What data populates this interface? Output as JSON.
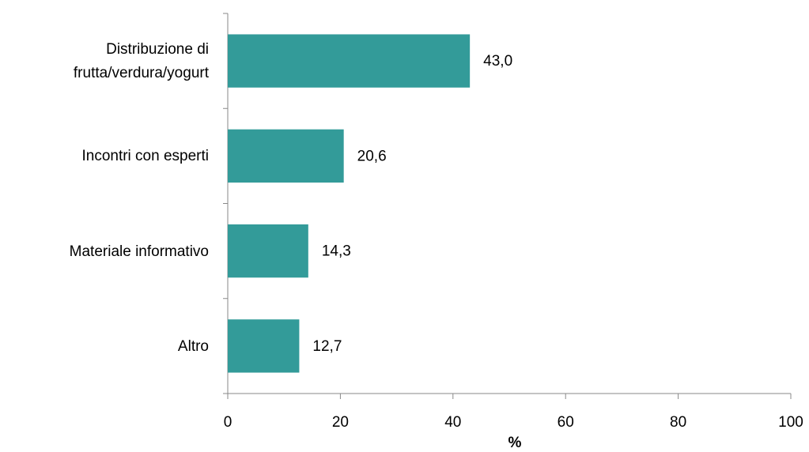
{
  "chart_data": {
    "type": "bar",
    "orientation": "horizontal",
    "categories": [
      "Distribuzione di frutta/verdura/yogurt",
      "Incontri con esperti",
      "Materiale informativo",
      "Altro"
    ],
    "values": [
      43.0,
      20.6,
      14.3,
      12.7
    ],
    "value_labels": [
      "43,0",
      "20,6",
      "14,3",
      "12,7"
    ],
    "color": "#339b99",
    "xlabel": "%",
    "xlim": [
      0,
      100
    ],
    "xticks": [
      0,
      20,
      40,
      60,
      80,
      100
    ]
  }
}
